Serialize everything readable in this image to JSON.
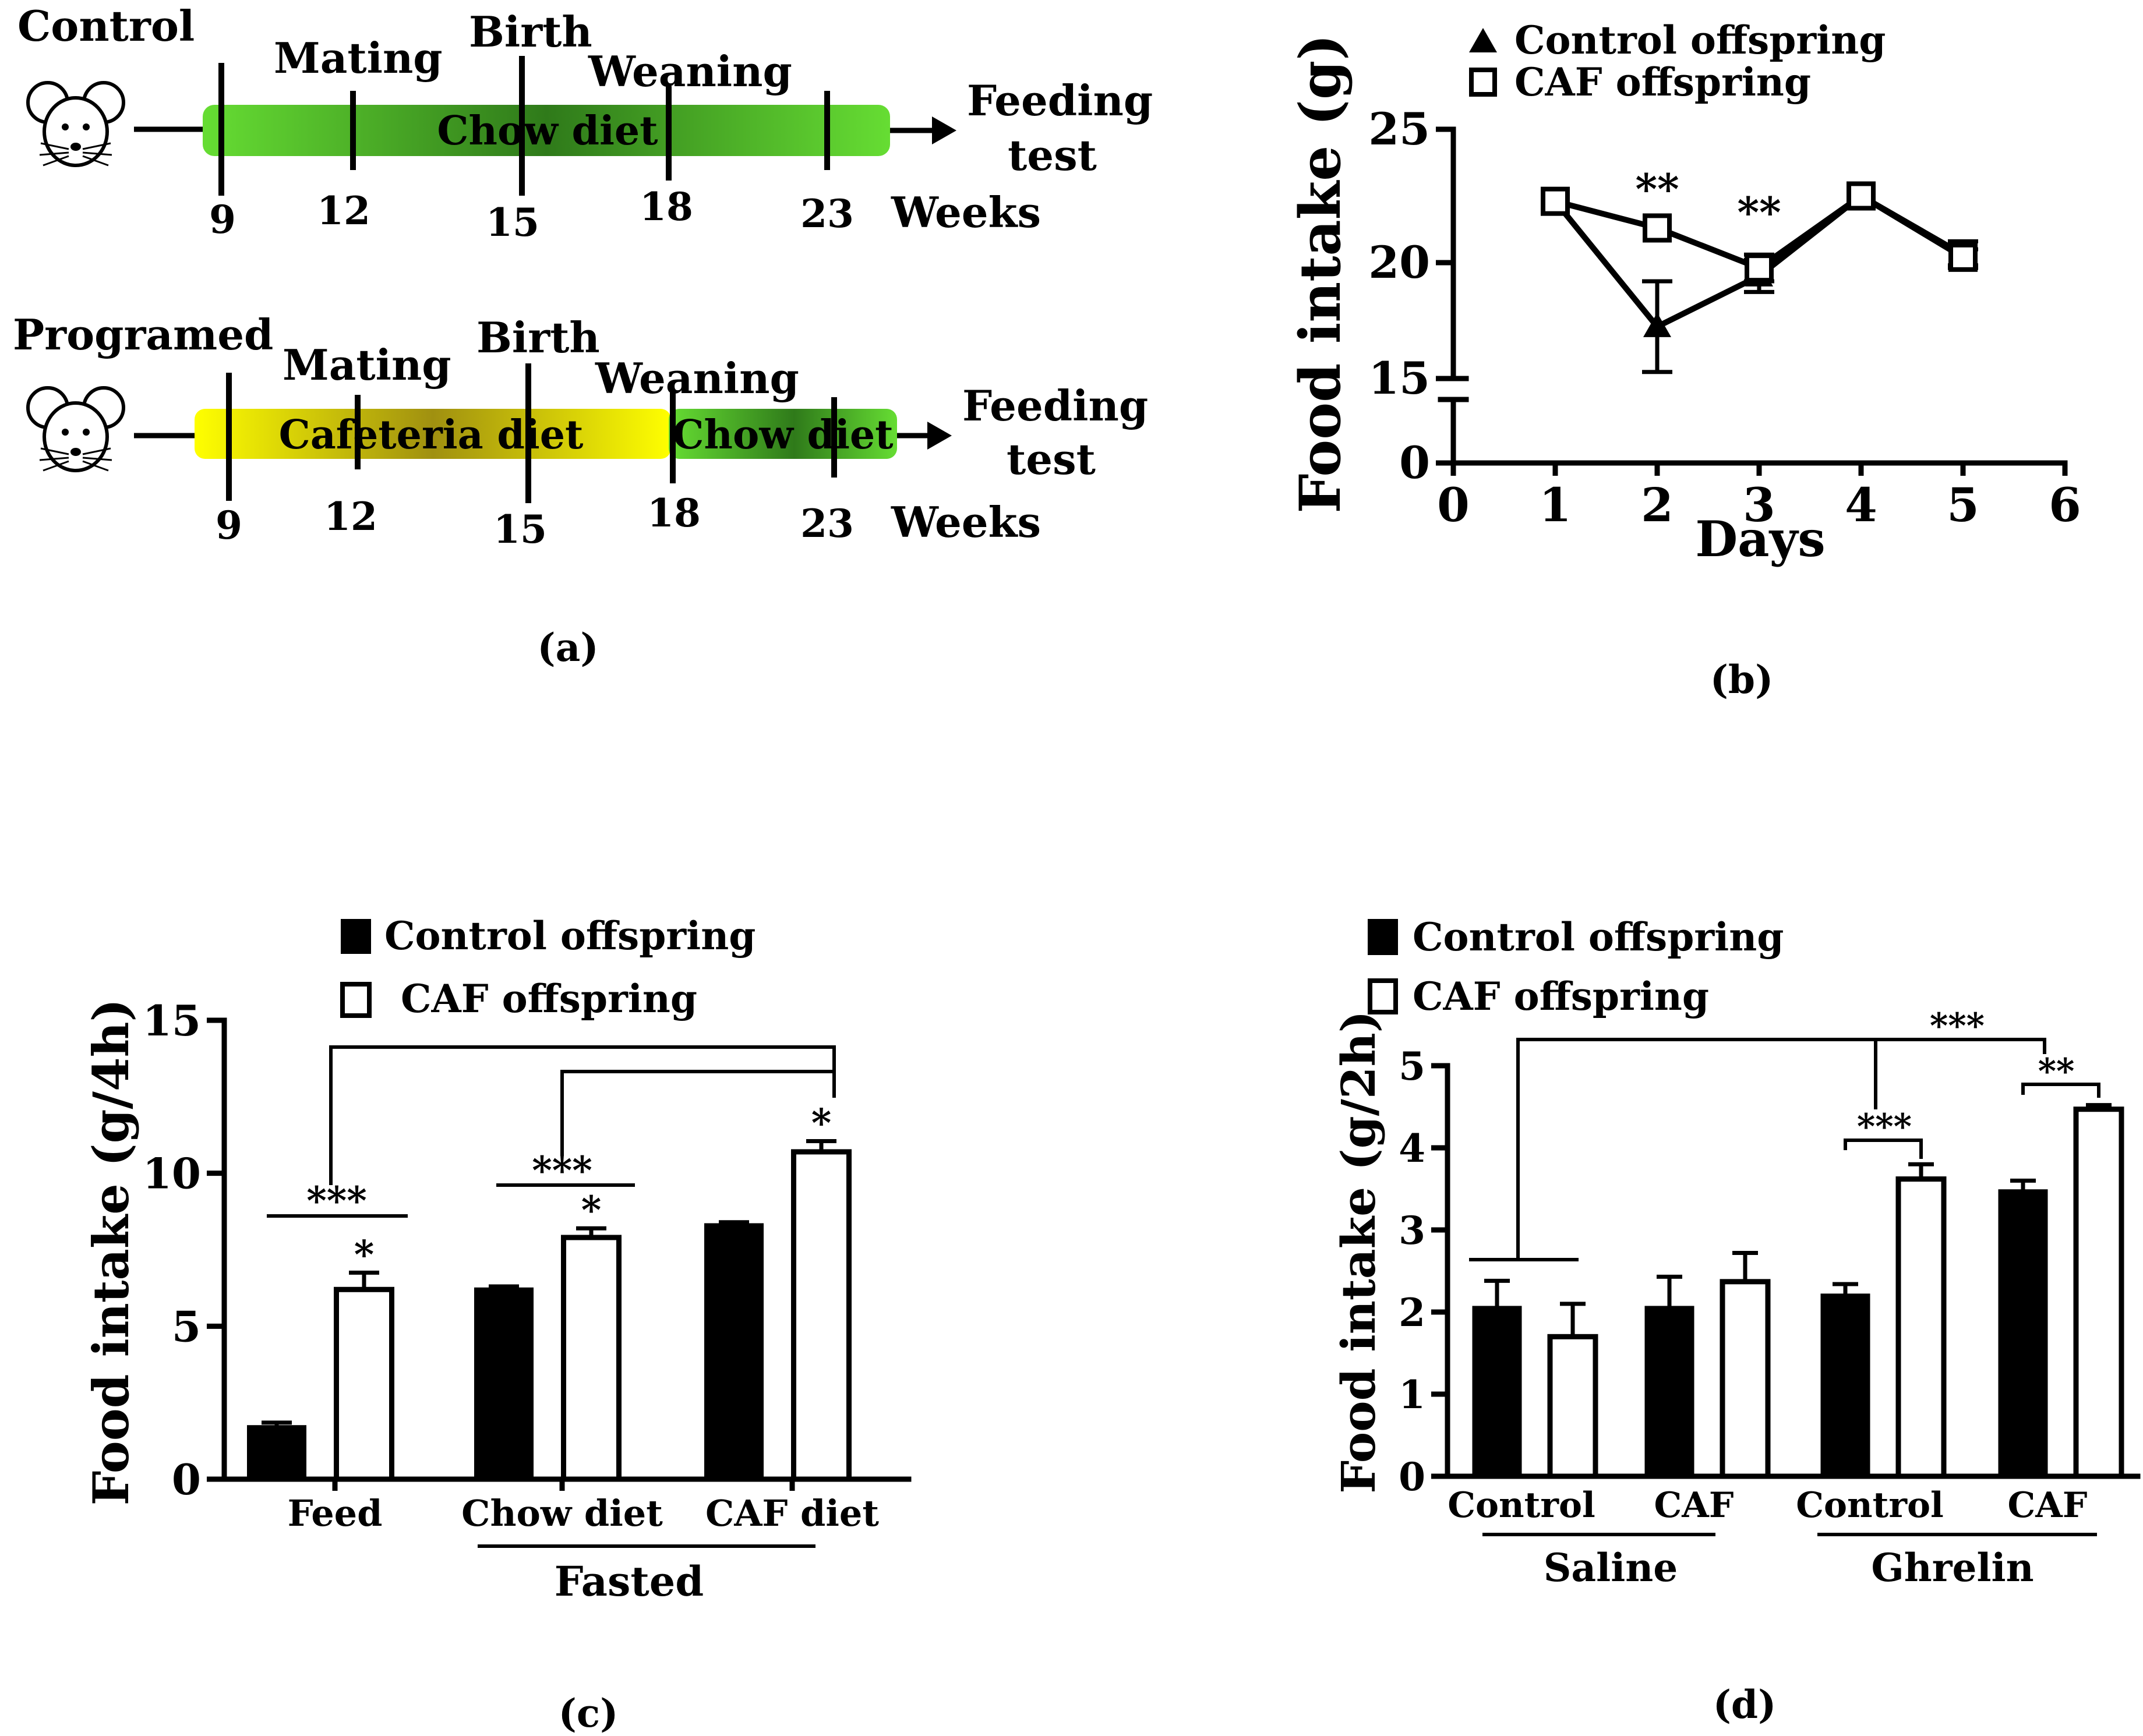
{
  "colors": {
    "ink": "#000000",
    "paper": "#ffffff",
    "chow_light": "#66dd33",
    "chow_dark": "#2f7a1a",
    "cafeteria_light": "#ffff00",
    "cafeteria_dark": "#a09010"
  },
  "icons": [
    "mouse-icon"
  ],
  "panel_a": {
    "caption": "(a)",
    "control": {
      "title": "Control",
      "bar_label": "Chow diet",
      "events": [
        "Mating",
        "Birth",
        "Weaning"
      ],
      "weeks": [
        "9",
        "12",
        "15",
        "18",
        "23"
      ],
      "weeks_label": "Weeks",
      "end_label_1": "Feeding",
      "end_label_2": "test"
    },
    "programmed": {
      "title": "Programed",
      "bar_label_1": "Cafeteria diet",
      "bar_label_2": "Chow diet",
      "events": [
        "Mating",
        "Birth",
        "Weaning"
      ],
      "weeks": [
        "9",
        "12",
        "15",
        "18",
        "23"
      ],
      "weeks_label": "Weeks",
      "end_label_1": "Feeding",
      "end_label_2": "test"
    }
  },
  "panel_b": {
    "caption": "(b)"
  },
  "panel_c": {
    "caption": "(c)"
  },
  "panel_d": {
    "caption": "(d)"
  },
  "chart_data": [
    {
      "panel": "b",
      "type": "line",
      "xlabel": "Days",
      "ylabel": "Food intake (g)",
      "x_ticks": [
        "0",
        "1",
        "2",
        "3",
        "4",
        "5",
        "6"
      ],
      "y_ticks": [
        "0",
        "15",
        "20",
        "25"
      ],
      "xlim": [
        0,
        6
      ],
      "ylim": [
        0,
        25
      ],
      "y_axis_break": [
        0,
        15
      ],
      "legend": [
        "Control offspring",
        "CAF offspring"
      ],
      "legend_position": "top-right",
      "series": [
        {
          "name": "Control offspring",
          "marker": "triangle",
          "x": [
            1,
            2,
            3,
            4,
            5
          ],
          "values": [
            22.3,
            17.6,
            19.5,
            22.5,
            20.3
          ],
          "errors": [
            0,
            1.7,
            0.6,
            0,
            0.5
          ]
        },
        {
          "name": "CAF offspring",
          "marker": "square",
          "x": [
            1,
            2,
            3,
            4,
            5
          ],
          "values": [
            22.3,
            21.3,
            19.8,
            22.5,
            20.2
          ],
          "errors": [
            0,
            0,
            0.5,
            0,
            0.3
          ]
        }
      ],
      "annotations": [
        {
          "x": 2,
          "text": "**"
        },
        {
          "x": 3,
          "text": "**"
        }
      ]
    },
    {
      "panel": "c",
      "type": "bar",
      "ylabel": "Food intake (g/4h)",
      "categories": [
        "Feed",
        "Chow diet",
        "CAF diet"
      ],
      "group_label": "Fasted",
      "y_ticks": [
        "0",
        "5",
        "10",
        "15"
      ],
      "ylim": [
        0,
        15
      ],
      "legend": [
        "Control offspring",
        "CAF offspring"
      ],
      "legend_position": "top",
      "series": [
        {
          "name": "Control offspring",
          "values": [
            1.7,
            6.2,
            8.3
          ],
          "errors": [
            0.15,
            0.1,
            0.1
          ]
        },
        {
          "name": "CAF offspring",
          "values": [
            6.2,
            7.9,
            10.7
          ],
          "errors": [
            0.55,
            0.3,
            0.35
          ]
        }
      ],
      "star_labels": [
        "*",
        "*",
        "*"
      ],
      "significance": [
        {
          "label": "***",
          "category": "Feed"
        },
        {
          "label": "***",
          "category": "Chow diet"
        }
      ]
    },
    {
      "panel": "d",
      "type": "bar",
      "ylabel": "Food intake (g/2h)",
      "categories": [
        "Control",
        "CAF",
        "Control",
        "CAF"
      ],
      "groups": [
        "Saline",
        "Ghrelin"
      ],
      "y_ticks": [
        "0",
        "1",
        "2",
        "3",
        "4",
        "5"
      ],
      "ylim": [
        0,
        5
      ],
      "legend": [
        "Control offspring",
        "CAF offspring"
      ],
      "legend_position": "top",
      "series": [
        {
          "name": "Control offspring",
          "values": [
            2.05,
            2.05,
            2.2,
            3.47
          ],
          "errors": [
            0.33,
            0.38,
            0.14,
            0.13
          ]
        },
        {
          "name": "CAF offspring",
          "values": [
            1.7,
            2.37,
            3.62,
            4.47
          ],
          "errors": [
            0.4,
            0.35,
            0.18,
            0.05
          ]
        }
      ],
      "significance": [
        {
          "label": "***",
          "between": [
            "Saline Control",
            "Ghrelin CAF"
          ]
        },
        {
          "label": "***",
          "within": "Ghrelin Control"
        },
        {
          "label": "**",
          "within": "Ghrelin CAF"
        }
      ]
    }
  ]
}
